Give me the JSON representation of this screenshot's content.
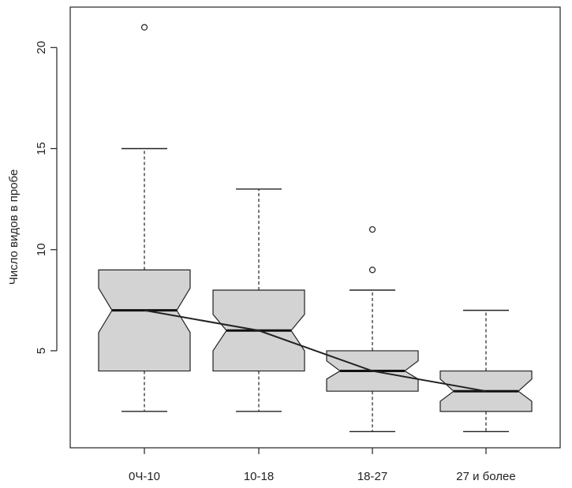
{
  "chart_data": {
    "type": "boxplot",
    "notched": true,
    "title": "",
    "xlabel": "",
    "ylabel": "Число видов в пробе",
    "ylim": [
      0.2,
      22.0
    ],
    "yticks": [
      5,
      10,
      15,
      20
    ],
    "grid": false,
    "categories": [
      "0Ч-10",
      "10-18",
      "18-27",
      "27 и более"
    ],
    "boxes": [
      {
        "category": "0Ч-10",
        "whisker_low": 2,
        "q1": 4,
        "median": 7,
        "q3": 9,
        "whisker_high": 15,
        "notch_low": 5.9,
        "notch_high": 8.1,
        "outliers": [
          21
        ]
      },
      {
        "category": "10-18",
        "whisker_low": 2,
        "q1": 4,
        "median": 6,
        "q3": 8,
        "whisker_high": 13,
        "notch_low": 5.0,
        "notch_high": 6.8,
        "outliers": []
      },
      {
        "category": "18-27",
        "whisker_low": 1,
        "q1": 3,
        "median": 4,
        "q3": 5,
        "whisker_high": 8,
        "notch_low": 3.6,
        "notch_high": 4.5,
        "outliers": [
          9,
          11
        ]
      },
      {
        "category": "27 и более",
        "whisker_low": 1,
        "q1": 2,
        "median": 3,
        "q3": 4,
        "whisker_high": 7,
        "notch_low": 2.5,
        "notch_high": 3.6,
        "outliers": []
      }
    ],
    "trend_line": {
      "values": [
        7,
        6,
        4,
        3
      ]
    },
    "colors": {
      "box_fill": "#d3d3d3",
      "line": "#222222"
    }
  }
}
